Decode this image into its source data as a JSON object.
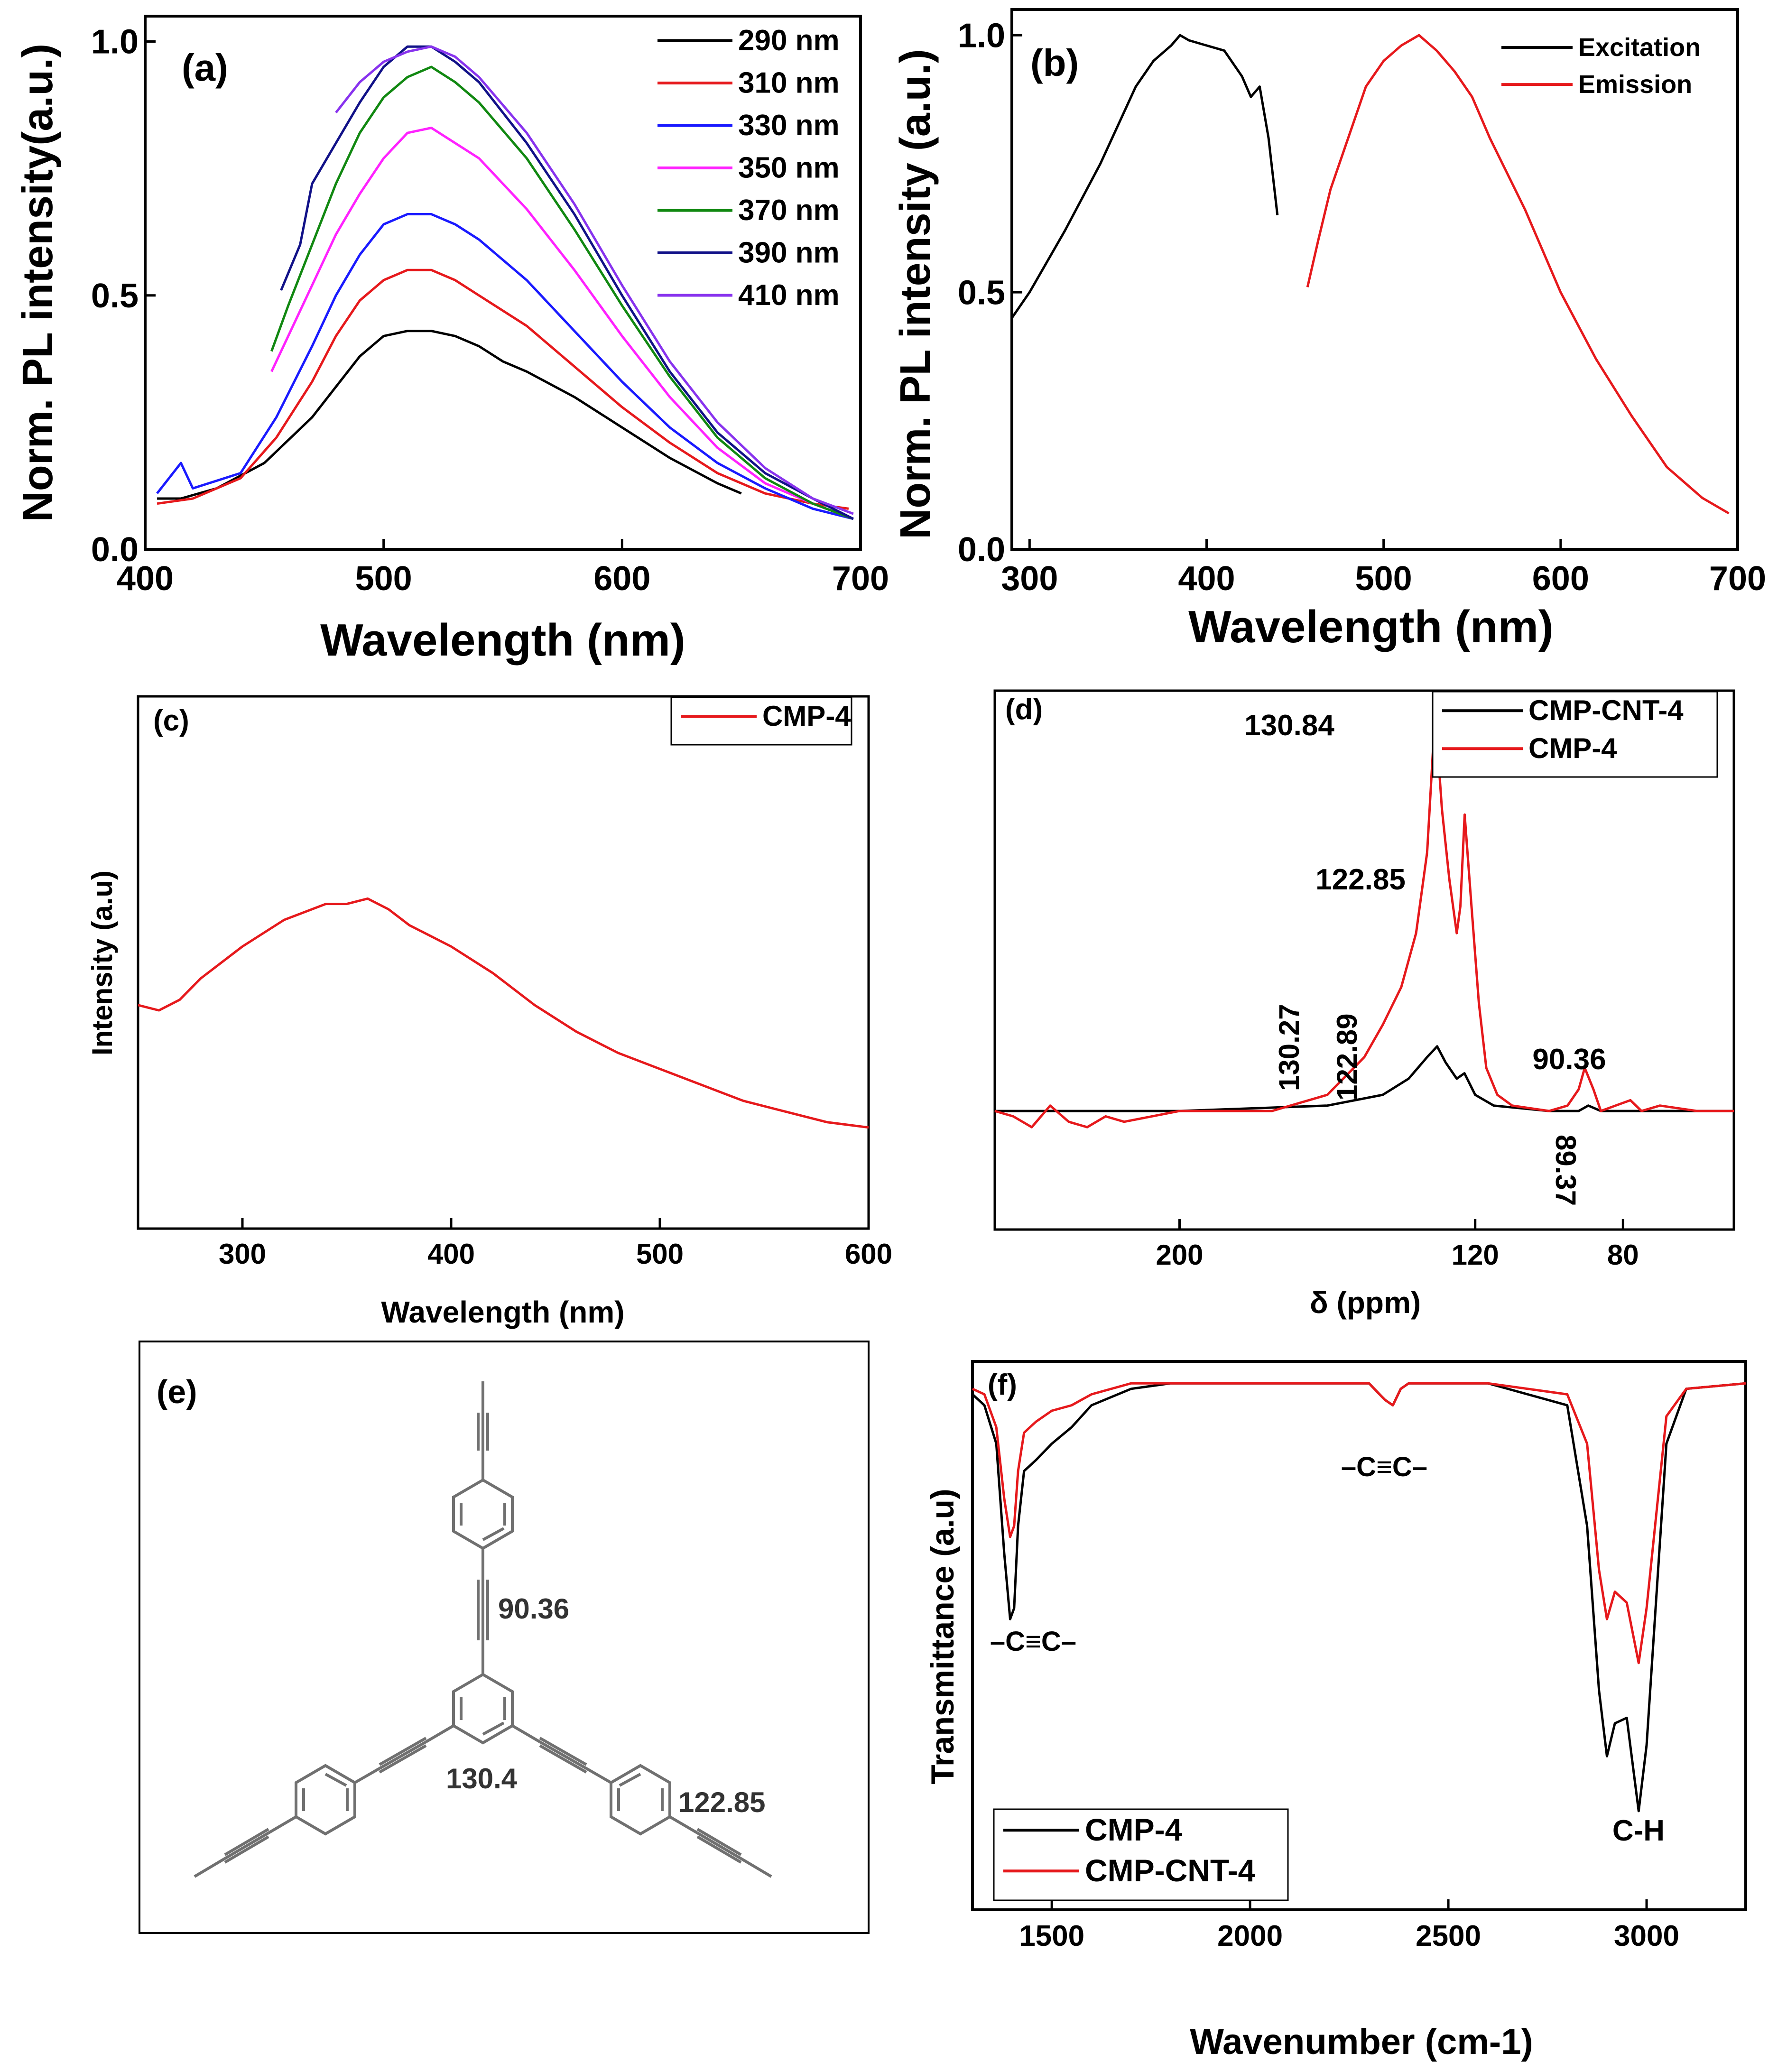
{
  "chart_data": [
    {
      "panel": "(a)",
      "type": "line",
      "xlabel": "Wavelength (nm)",
      "ylabel": "Norm. PL intensity(a.u.)",
      "xlim": [
        400,
        700
      ],
      "ylim": [
        0.0,
        1.05
      ],
      "xticks": [
        "400",
        "500",
        "600",
        "700"
      ],
      "yticks": [
        "0.0",
        "0.5",
        "1.0"
      ],
      "legend_position": "top-right",
      "series": [
        {
          "name": "290 nm",
          "color": "#000000",
          "x": [
            405,
            415,
            430,
            450,
            470,
            480,
            490,
            500,
            510,
            520,
            530,
            540,
            550,
            560,
            580,
            600,
            620,
            640,
            650
          ],
          "y": [
            0.1,
            0.1,
            0.12,
            0.17,
            0.26,
            0.32,
            0.38,
            0.42,
            0.43,
            0.43,
            0.42,
            0.4,
            0.37,
            0.35,
            0.3,
            0.24,
            0.18,
            0.13,
            0.11
          ]
        },
        {
          "name": "310 nm",
          "color": "#e6191c",
          "x": [
            405,
            420,
            440,
            455,
            470,
            480,
            490,
            500,
            510,
            520,
            530,
            540,
            560,
            580,
            600,
            620,
            640,
            660,
            680,
            695
          ],
          "y": [
            0.09,
            0.1,
            0.14,
            0.22,
            0.33,
            0.42,
            0.49,
            0.53,
            0.55,
            0.55,
            0.53,
            0.5,
            0.44,
            0.36,
            0.28,
            0.21,
            0.15,
            0.11,
            0.09,
            0.08
          ]
        },
        {
          "name": "330 nm",
          "color": "#1a1aff",
          "x": [
            405,
            415,
            420,
            440,
            455,
            470,
            480,
            490,
            500,
            510,
            520,
            530,
            540,
            560,
            580,
            600,
            620,
            640,
            660,
            680,
            697
          ],
          "y": [
            0.11,
            0.17,
            0.12,
            0.15,
            0.26,
            0.4,
            0.5,
            0.58,
            0.64,
            0.66,
            0.66,
            0.64,
            0.61,
            0.53,
            0.43,
            0.33,
            0.24,
            0.17,
            0.12,
            0.08,
            0.06
          ]
        },
        {
          "name": "350 nm",
          "color": "#ff22ff",
          "x": [
            453,
            460,
            470,
            480,
            490,
            500,
            510,
            520,
            530,
            540,
            560,
            580,
            600,
            620,
            640,
            660,
            680,
            697
          ],
          "y": [
            0.35,
            0.42,
            0.52,
            0.62,
            0.7,
            0.77,
            0.82,
            0.83,
            0.8,
            0.77,
            0.67,
            0.55,
            0.42,
            0.3,
            0.2,
            0.13,
            0.09,
            0.06
          ]
        },
        {
          "name": "370 nm",
          "color": "#118811",
          "x": [
            453,
            460,
            470,
            480,
            490,
            500,
            510,
            520,
            530,
            540,
            560,
            580,
            600,
            620,
            640,
            660,
            680,
            697
          ],
          "y": [
            0.39,
            0.48,
            0.6,
            0.72,
            0.82,
            0.89,
            0.93,
            0.95,
            0.92,
            0.88,
            0.77,
            0.63,
            0.48,
            0.34,
            0.22,
            0.14,
            0.09,
            0.06
          ]
        },
        {
          "name": "390 nm",
          "color": "#111188",
          "x": [
            457,
            465,
            470,
            480,
            490,
            500,
            510,
            520,
            530,
            540,
            560,
            580,
            600,
            620,
            640,
            660,
            680,
            697
          ],
          "y": [
            0.51,
            0.6,
            0.72,
            0.8,
            0.88,
            0.95,
            0.99,
            0.99,
            0.96,
            0.92,
            0.8,
            0.66,
            0.5,
            0.35,
            0.23,
            0.15,
            0.1,
            0.06
          ]
        },
        {
          "name": "410 nm",
          "color": "#8833ee",
          "x": [
            480,
            490,
            500,
            510,
            520,
            530,
            540,
            560,
            580,
            600,
            620,
            640,
            660,
            680,
            697
          ],
          "y": [
            0.86,
            0.92,
            0.96,
            0.98,
            0.99,
            0.97,
            0.93,
            0.82,
            0.68,
            0.52,
            0.37,
            0.25,
            0.16,
            0.1,
            0.07
          ]
        }
      ]
    },
    {
      "panel": "(b)",
      "type": "line",
      "xlabel": "Wavelength (nm)",
      "ylabel": "Norm. PL intensity (a.u.)",
      "xlim": [
        290,
        700
      ],
      "ylim": [
        0.0,
        1.05
      ],
      "xticks": [
        "300",
        "400",
        "500",
        "600",
        "700"
      ],
      "yticks": [
        "0.0",
        "0.5",
        "1.0"
      ],
      "legend_position": "top-right",
      "series": [
        {
          "name": "Excitation",
          "color": "#000000",
          "x": [
            290,
            300,
            320,
            340,
            360,
            370,
            380,
            385,
            390,
            400,
            410,
            420,
            425,
            430,
            435,
            440
          ],
          "y": [
            0.45,
            0.5,
            0.62,
            0.75,
            0.9,
            0.95,
            0.98,
            1.0,
            0.99,
            0.98,
            0.97,
            0.92,
            0.88,
            0.9,
            0.8,
            0.65
          ]
        },
        {
          "name": "Emission",
          "color": "#e6191c",
          "x": [
            457,
            463,
            470,
            480,
            490,
            500,
            510,
            520,
            530,
            540,
            550,
            560,
            580,
            600,
            620,
            640,
            660,
            680,
            695
          ],
          "y": [
            0.51,
            0.6,
            0.7,
            0.8,
            0.9,
            0.95,
            0.98,
            1.0,
            0.97,
            0.93,
            0.88,
            0.8,
            0.66,
            0.5,
            0.37,
            0.26,
            0.16,
            0.1,
            0.07
          ]
        }
      ]
    },
    {
      "panel": "(c)",
      "type": "line",
      "xlabel": "Wavelength (nm)",
      "ylabel": "Intensity (a.u)",
      "xlim": [
        250,
        600
      ],
      "ylim": [
        0,
        1
      ],
      "xticks": [
        "300",
        "400",
        "500",
        "600"
      ],
      "legend_position": "top-right",
      "series": [
        {
          "name": "CMP-4",
          "color": "#e6191c",
          "x": [
            250,
            260,
            270,
            280,
            300,
            320,
            340,
            350,
            360,
            370,
            380,
            400,
            420,
            440,
            460,
            480,
            500,
            520,
            540,
            560,
            580,
            600
          ],
          "y": [
            0.42,
            0.41,
            0.43,
            0.47,
            0.53,
            0.58,
            0.61,
            0.61,
            0.62,
            0.6,
            0.57,
            0.53,
            0.48,
            0.42,
            0.37,
            0.33,
            0.3,
            0.27,
            0.24,
            0.22,
            0.2,
            0.19
          ]
        }
      ]
    },
    {
      "panel": "(d)",
      "type": "line",
      "xlabel": "δ (ppm)",
      "xlim": [
        250,
        50
      ],
      "ylim": [
        0,
        1
      ],
      "xticks": [
        "200",
        "120",
        "80"
      ],
      "legend_position": "top-right",
      "annotations": [
        "130.84",
        "122.85",
        "90.36",
        "130.27",
        "122.89",
        "89.37"
      ],
      "series": [
        {
          "name": "CMP-CNT-4",
          "color": "#000000",
          "x": [
            250,
            200,
            160,
            145,
            138,
            133,
            130.3,
            128,
            125,
            122.9,
            120,
            115,
            100,
            92,
            89.4,
            86,
            80,
            50
          ],
          "y": [
            0.22,
            0.22,
            0.23,
            0.25,
            0.28,
            0.32,
            0.34,
            0.31,
            0.28,
            0.29,
            0.25,
            0.23,
            0.22,
            0.22,
            0.23,
            0.22,
            0.22,
            0.22
          ]
        },
        {
          "name": "CMP-4",
          "color": "#e6191c",
          "x": [
            250,
            245,
            240,
            235,
            230,
            225,
            220,
            215,
            200,
            175,
            160,
            150,
            145,
            140,
            136,
            133,
            130.84,
            129,
            127,
            125,
            124,
            122.85,
            121,
            119,
            117,
            114,
            110,
            100,
            95,
            92,
            90.36,
            88,
            86,
            82,
            78,
            75,
            70,
            60,
            50
          ],
          "y": [
            0.22,
            0.21,
            0.19,
            0.23,
            0.2,
            0.19,
            0.21,
            0.2,
            0.22,
            0.22,
            0.25,
            0.32,
            0.38,
            0.45,
            0.55,
            0.7,
            0.96,
            0.78,
            0.65,
            0.55,
            0.6,
            0.77,
            0.6,
            0.42,
            0.3,
            0.25,
            0.23,
            0.22,
            0.23,
            0.26,
            0.3,
            0.26,
            0.22,
            0.23,
            0.24,
            0.22,
            0.23,
            0.22,
            0.22
          ]
        }
      ]
    },
    {
      "panel": "(f)",
      "type": "line",
      "xlabel": "Wavenumber (cm-1)",
      "ylabel": "Transmittance (a.u)",
      "xlim": [
        1300,
        3250
      ],
      "ylim": [
        0,
        1
      ],
      "xticks": [
        "1500",
        "2000",
        "2500",
        "3000"
      ],
      "legend_position": "bottom-left",
      "annotations": [
        "–C≡C–",
        "–C≡C–",
        "C-H"
      ],
      "series": [
        {
          "name": "CMP-4",
          "color": "#000000",
          "x": [
            1300,
            1330,
            1360,
            1380,
            1395,
            1405,
            1415,
            1430,
            1460,
            1500,
            1550,
            1600,
            1700,
            1800,
            2000,
            2300,
            2340,
            2360,
            2380,
            2400,
            2600,
            2800,
            2850,
            2880,
            2900,
            2920,
            2950,
            2980,
            3000,
            3050,
            3100,
            3250
          ],
          "y": [
            0.94,
            0.92,
            0.85,
            0.65,
            0.53,
            0.55,
            0.7,
            0.8,
            0.82,
            0.85,
            0.88,
            0.92,
            0.95,
            0.96,
            0.96,
            0.96,
            0.93,
            0.92,
            0.95,
            0.96,
            0.96,
            0.92,
            0.7,
            0.4,
            0.28,
            0.34,
            0.35,
            0.18,
            0.3,
            0.85,
            0.95,
            0.96
          ]
        },
        {
          "name": "CMP-CNT-4",
          "color": "#e6191c",
          "x": [
            1300,
            1330,
            1360,
            1380,
            1395,
            1405,
            1415,
            1430,
            1460,
            1500,
            1550,
            1600,
            1700,
            1800,
            2000,
            2300,
            2340,
            2360,
            2380,
            2400,
            2600,
            2800,
            2850,
            2880,
            2900,
            2920,
            2950,
            2980,
            3000,
            3050,
            3100,
            3250
          ],
          "y": [
            0.95,
            0.94,
            0.88,
            0.75,
            0.68,
            0.7,
            0.8,
            0.87,
            0.89,
            0.91,
            0.92,
            0.94,
            0.96,
            0.96,
            0.96,
            0.96,
            0.93,
            0.92,
            0.95,
            0.96,
            0.96,
            0.94,
            0.85,
            0.62,
            0.53,
            0.58,
            0.56,
            0.45,
            0.55,
            0.9,
            0.95,
            0.96
          ]
        }
      ]
    }
  ],
  "structure_e": {
    "panel": "(e)",
    "labels": [
      "90.36",
      "130.4",
      "122.85"
    ]
  }
}
